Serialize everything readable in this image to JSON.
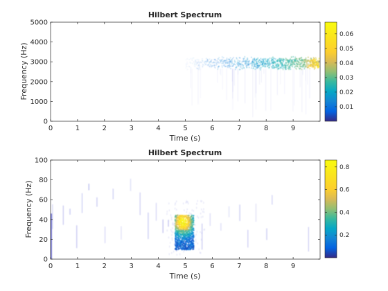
{
  "chart_data": [
    {
      "type": "heatmap",
      "title": "Hilbert Spectrum",
      "xlabel": "Time (s)",
      "ylabel": "Frequency (Hz)",
      "xlim": [
        0,
        10
      ],
      "ylim": [
        0,
        5000
      ],
      "xticks": [
        0,
        1,
        2,
        3,
        4,
        5,
        6,
        7,
        8,
        9
      ],
      "yticks": [
        0,
        1000,
        2000,
        3000,
        4000,
        5000
      ],
      "colormap": "parula",
      "colorbar": {
        "ticks": [
          0.01,
          0.02,
          0.03,
          0.04,
          0.05,
          0.06
        ],
        "range": [
          0,
          0.068
        ]
      },
      "grid": false,
      "energy_band": {
        "time_start": 5.0,
        "time_end": 9.95,
        "freq_center": 2950,
        "freq_halfwidth": 280,
        "peak_time": 9.8,
        "peak_value": 0.068
      }
    },
    {
      "type": "heatmap",
      "title": "Hilbert Spectrum",
      "xlabel": "Time (s)",
      "ylabel": "Frequency (Hz)",
      "xlim": [
        0,
        10
      ],
      "ylim": [
        0,
        100
      ],
      "xticks": [
        0,
        1,
        2,
        3,
        4,
        5,
        6,
        7,
        8,
        9
      ],
      "yticks": [
        0,
        20,
        40,
        60,
        80,
        100
      ],
      "colormap": "parula",
      "colorbar": {
        "ticks": [
          0.2,
          0.4,
          0.6,
          0.8
        ],
        "range": [
          0,
          0.86
        ]
      },
      "grid": false,
      "energy_burst": {
        "time_start": 4.6,
        "time_end": 5.3,
        "freq_low": 10,
        "freq_high": 45,
        "peak_time": 4.9,
        "peak_freq": 38,
        "peak_value": 0.86
      }
    }
  ]
}
